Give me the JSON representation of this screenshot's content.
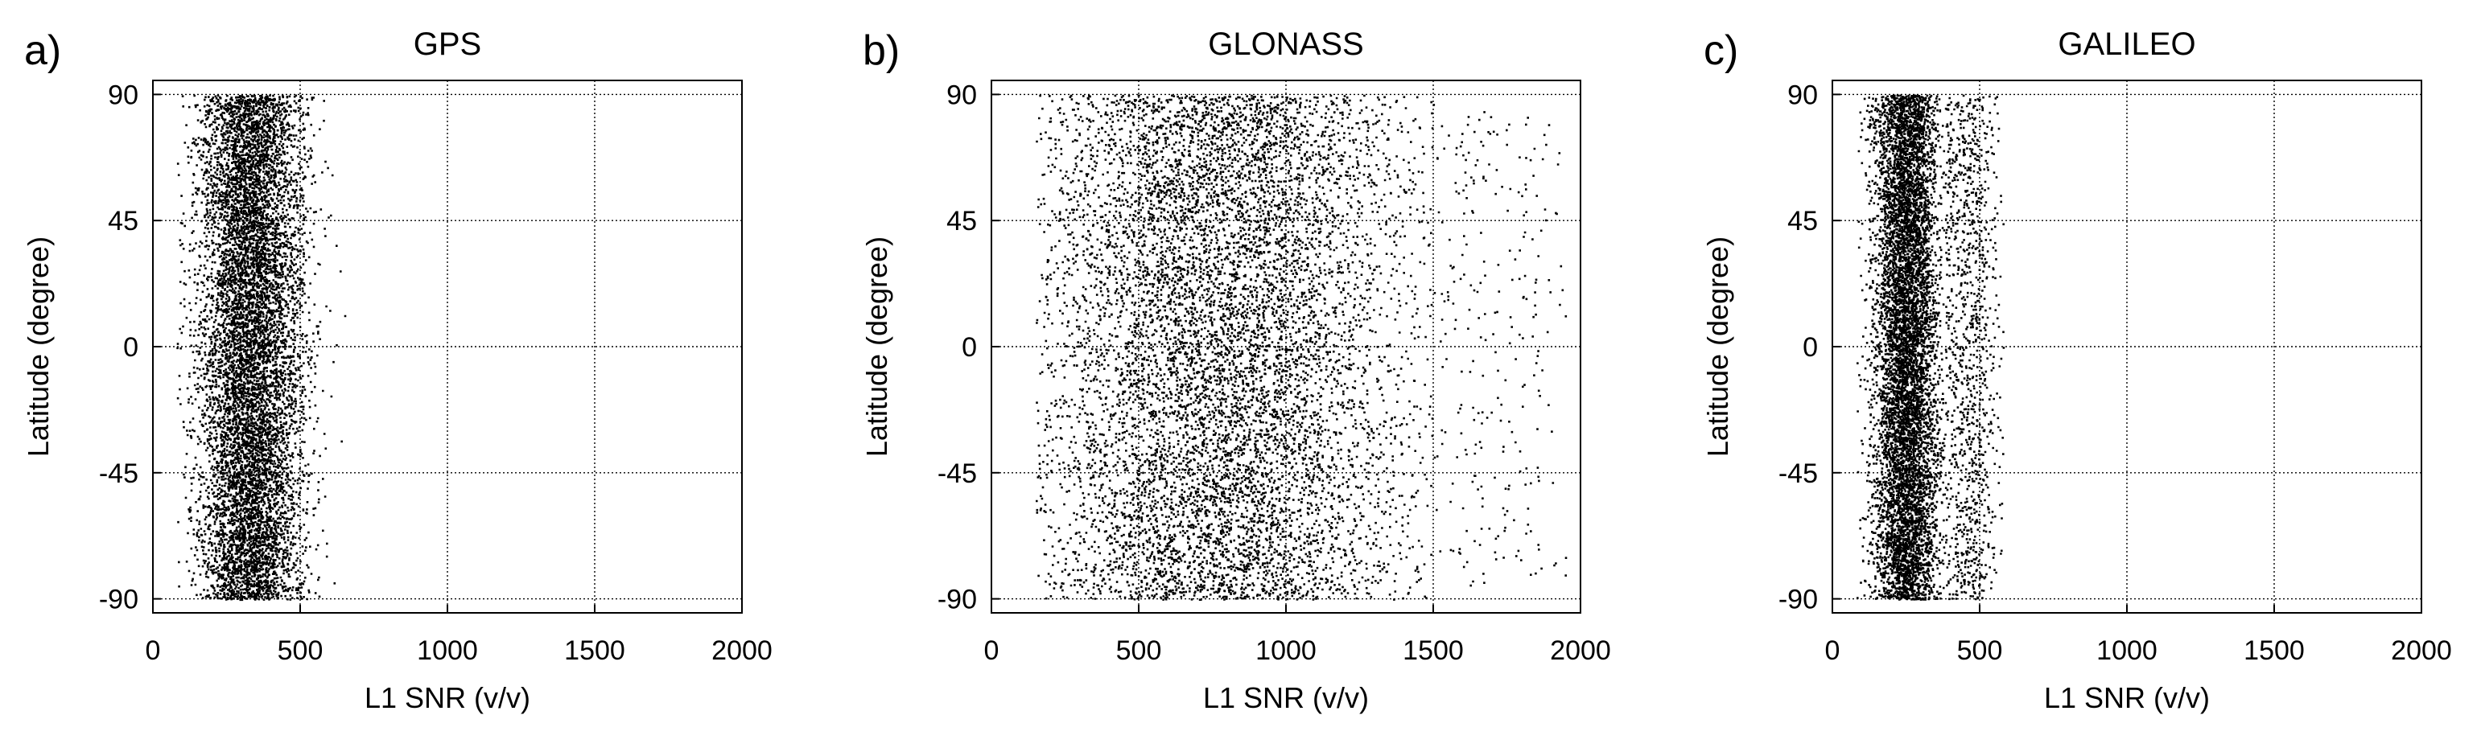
{
  "chart_data": [
    {
      "type": "scatter",
      "panel_label": "a)",
      "title": "GPS",
      "xlabel": "L1 SNR (v/v)",
      "ylabel": "Latitude (degree)",
      "xlim": [
        0,
        2000
      ],
      "ylim": [
        -95,
        95
      ],
      "xticks": [
        0,
        500,
        1000,
        1500,
        2000
      ],
      "yticks": [
        -90,
        -45,
        0,
        45,
        90
      ],
      "grid": true,
      "point_count": 9000,
      "distribution": {
        "segments": [
          {
            "x_min": 80,
            "x_max": 750,
            "x_center": 330,
            "x_spread": 90,
            "weight": 1.0,
            "y_min": -90,
            "y_max": 90
          }
        ]
      }
    },
    {
      "type": "scatter",
      "panel_label": "b)",
      "title": "GLONASS",
      "xlabel": "L1 SNR (v/v)",
      "ylabel": "Latitude (degree)",
      "xlim": [
        0,
        2000
      ],
      "ylim": [
        -95,
        95
      ],
      "xticks": [
        0,
        500,
        1000,
        1500,
        2000
      ],
      "yticks": [
        -90,
        -45,
        0,
        45,
        90
      ],
      "grid": true,
      "point_count": 9000,
      "distribution": {
        "segments": [
          {
            "x_min": 150,
            "x_max": 1500,
            "x_center": 780,
            "x_spread": 320,
            "weight": 0.97,
            "y_min": -90,
            "y_max": 90
          },
          {
            "x_min": 1500,
            "x_max": 1950,
            "x_center": 1700,
            "x_spread": 200,
            "weight": 0.03,
            "y_min": -85,
            "y_max": 85
          }
        ]
      }
    },
    {
      "type": "scatter",
      "panel_label": "c)",
      "title": "GALILEO",
      "xlabel": "L1 SNR (v/v)",
      "ylabel": "Latitude (degree)",
      "xlim": [
        0,
        2000
      ],
      "ylim": [
        -95,
        95
      ],
      "xticks": [
        0,
        500,
        1000,
        1500,
        2000
      ],
      "yticks": [
        -90,
        -45,
        0,
        45,
        90
      ],
      "grid": true,
      "point_count": 9000,
      "distribution": {
        "segments": [
          {
            "x_min": 80,
            "x_max": 560,
            "x_center": 250,
            "x_spread": 55,
            "weight": 0.88,
            "y_min": -90,
            "y_max": 90
          },
          {
            "x_min": 380,
            "x_max": 580,
            "x_center": 460,
            "x_spread": 50,
            "weight": 0.12,
            "y_min": -90,
            "y_max": 90
          }
        ]
      }
    }
  ]
}
